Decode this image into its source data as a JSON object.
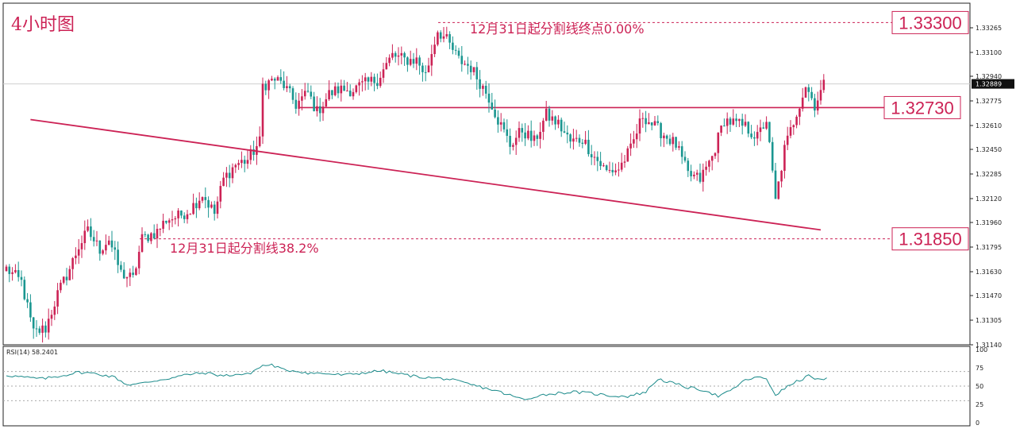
{
  "chart_data": [
    {
      "type": "candlestick",
      "title": "4小时图",
      "timeframe": "H4",
      "ylim": [
        1.3114,
        1.3343
      ],
      "ticks": [
        "1.33265",
        "1.33100",
        "1.32940",
        "1.32775",
        "1.32610",
        "1.32450",
        "1.32285",
        "1.32120",
        "1.31960",
        "1.31795",
        "1.31630",
        "1.31470",
        "1.31305",
        "1.31140"
      ],
      "tick_values": [
        1.33265,
        1.331,
        1.3294,
        1.32775,
        1.3261,
        1.3245,
        1.32285,
        1.3212,
        1.3196,
        1.31795,
        1.3163,
        1.3147,
        1.31305,
        1.3114
      ],
      "current_price": "1.32889",
      "current_price_value": 1.32889,
      "levels": [
        {
          "label": "1.33300",
          "value": 1.333,
          "style": "dashed"
        },
        {
          "label": "1.32730",
          "value": 1.3273,
          "style": "solid"
        },
        {
          "label": "1.31850",
          "value": 1.3185,
          "style": "dashed"
        }
      ],
      "annotations": [
        {
          "text": "12月31日起分割线终点0.00%",
          "level": 1.333
        },
        {
          "text": "12月31日起分割线38.2%",
          "level": 1.3185
        }
      ],
      "trendline": {
        "from": {
          "bar": 8,
          "price": 1.3265
        },
        "to": {
          "bar": 270,
          "price": 1.3191
        }
      },
      "colors": {
        "up": "#cc2255",
        "down": "#1a9690",
        "line": "#cc2255",
        "rsi": "#1a8a8a"
      },
      "anchors": [
        [
          0,
          1.3165
        ],
        [
          5,
          1.3156
        ],
        [
          9,
          1.3122
        ],
        [
          13,
          1.3125
        ],
        [
          17,
          1.3148
        ],
        [
          21,
          1.3165
        ],
        [
          24,
          1.318
        ],
        [
          27,
          1.319
        ],
        [
          31,
          1.3178
        ],
        [
          34,
          1.3185
        ],
        [
          38,
          1.3162
        ],
        [
          42,
          1.3158
        ],
        [
          45,
          1.3185
        ],
        [
          50,
          1.319
        ],
        [
          53,
          1.3198
        ],
        [
          57,
          1.32
        ],
        [
          61,
          1.3205
        ],
        [
          65,
          1.3215
        ],
        [
          69,
          1.3202
        ],
        [
          72,
          1.3225
        ],
        [
          76,
          1.3235
        ],
        [
          80,
          1.3238
        ],
        [
          84,
          1.325
        ],
        [
          85,
          1.3288
        ],
        [
          89,
          1.3292
        ],
        [
          92,
          1.3288
        ],
        [
          96,
          1.3275
        ],
        [
          100,
          1.3283
        ],
        [
          103,
          1.327
        ],
        [
          107,
          1.3282
        ],
        [
          110,
          1.3285
        ],
        [
          115,
          1.3285
        ],
        [
          118,
          1.3288
        ],
        [
          123,
          1.3292
        ],
        [
          128,
          1.3308
        ],
        [
          132,
          1.3305
        ],
        [
          136,
          1.3305
        ],
        [
          139,
          1.3295
        ],
        [
          143,
          1.3325
        ],
        [
          146,
          1.3318
        ],
        [
          150,
          1.3305
        ],
        [
          154,
          1.33
        ],
        [
          157,
          1.329
        ],
        [
          160,
          1.328
        ],
        [
          163,
          1.3265
        ],
        [
          167,
          1.3248
        ],
        [
          171,
          1.3258
        ],
        [
          175,
          1.325
        ],
        [
          179,
          1.3268
        ],
        [
          183,
          1.3262
        ],
        [
          187,
          1.325
        ],
        [
          191,
          1.3252
        ],
        [
          195,
          1.324
        ],
        [
          199,
          1.323
        ],
        [
          203,
          1.3232
        ],
        [
          207,
          1.3245
        ],
        [
          211,
          1.3268
        ],
        [
          215,
          1.326
        ],
        [
          218,
          1.3255
        ],
        [
          222,
          1.3248
        ],
        [
          226,
          1.3228
        ],
        [
          230,
          1.3225
        ],
        [
          234,
          1.324
        ],
        [
          238,
          1.3265
        ],
        [
          242,
          1.3262
        ],
        [
          245,
          1.326
        ],
        [
          249,
          1.3253
        ],
        [
          252,
          1.3265
        ],
        [
          255,
          1.321
        ],
        [
          258,
          1.3245
        ],
        [
          262,
          1.327
        ],
        [
          265,
          1.3288
        ],
        [
          268,
          1.3275
        ],
        [
          271,
          1.3288
        ]
      ],
      "seed": 12345
    },
    {
      "type": "line",
      "title": "RSI(14) 58.2401",
      "ylim": [
        0,
        100
      ],
      "ticks": [
        "100",
        "75",
        "50",
        "25",
        "0"
      ],
      "tick_values": [
        100,
        75,
        50,
        25,
        0
      ],
      "guides": [
        70,
        50,
        30
      ],
      "anchors": [
        [
          0,
          65
        ],
        [
          6,
          62
        ],
        [
          12,
          60
        ],
        [
          18,
          64
        ],
        [
          24,
          69
        ],
        [
          30,
          67
        ],
        [
          36,
          62
        ],
        [
          40,
          52
        ],
        [
          44,
          53
        ],
        [
          50,
          58
        ],
        [
          56,
          62
        ],
        [
          60,
          66
        ],
        [
          66,
          68
        ],
        [
          72,
          64
        ],
        [
          76,
          66
        ],
        [
          80,
          66
        ],
        [
          85,
          78
        ],
        [
          88,
          79
        ],
        [
          92,
          72
        ],
        [
          96,
          71
        ],
        [
          100,
          68
        ],
        [
          106,
          67
        ],
        [
          112,
          65
        ],
        [
          118,
          68
        ],
        [
          124,
          71
        ],
        [
          130,
          67
        ],
        [
          136,
          63
        ],
        [
          142,
          61
        ],
        [
          146,
          60
        ],
        [
          150,
          56
        ],
        [
          156,
          50
        ],
        [
          162,
          44
        ],
        [
          168,
          36
        ],
        [
          172,
          31
        ],
        [
          176,
          37
        ],
        [
          182,
          40
        ],
        [
          188,
          42
        ],
        [
          194,
          40
        ],
        [
          200,
          37
        ],
        [
          206,
          36
        ],
        [
          212,
          42
        ],
        [
          216,
          60
        ],
        [
          220,
          55
        ],
        [
          226,
          48
        ],
        [
          232,
          44
        ],
        [
          236,
          36
        ],
        [
          240,
          43
        ],
        [
          244,
          56
        ],
        [
          248,
          62
        ],
        [
          252,
          60
        ],
        [
          255,
          38
        ],
        [
          260,
          52
        ],
        [
          266,
          64
        ],
        [
          270,
          58
        ],
        [
          272,
          60
        ]
      ],
      "current": "58.2401"
    }
  ]
}
